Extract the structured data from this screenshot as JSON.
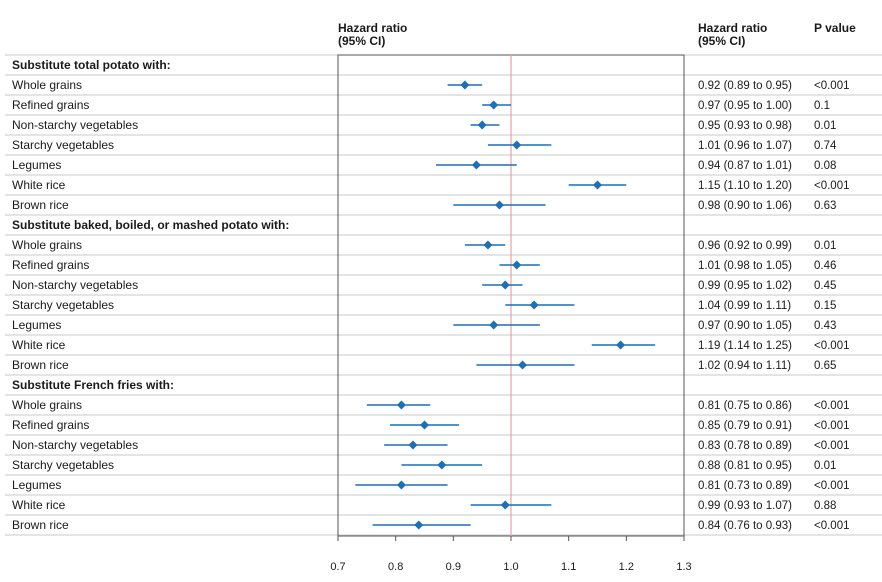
{
  "header": {
    "forest_title_line1": "Hazard ratio",
    "forest_title_line2": "(95% CI)",
    "hr_col_line1": "Hazard ratio",
    "hr_col_line2": "(95% CI)",
    "p_col": "P value"
  },
  "colors": {
    "point": "#1f6fb2",
    "reference_line": "#e8a0a8",
    "row_line": "#c8c8c8",
    "frame": "#555555"
  },
  "chart_data": {
    "type": "forest",
    "xlim": [
      0.7,
      1.3
    ],
    "x_ticks": [
      0.7,
      0.8,
      0.9,
      1.0,
      1.1,
      1.2,
      1.3
    ],
    "x_tick_labels": [
      "0.7",
      "0.8",
      "0.9",
      "1.0",
      "1.1",
      "1.2",
      "1.3"
    ],
    "reference_value": 1.0,
    "groups": [
      {
        "title": "Substitute total potato with:",
        "rows": [
          {
            "label": "Whole grains",
            "hr": 0.92,
            "lo": 0.89,
            "hi": 0.95,
            "hr_text": "0.92 (0.89 to 0.95)",
            "p": "<0.001"
          },
          {
            "label": "Refined grains",
            "hr": 0.97,
            "lo": 0.95,
            "hi": 1.0,
            "hr_text": "0.97 (0.95 to 1.00)",
            "p": "0.1"
          },
          {
            "label": "Non-starchy vegetables",
            "hr": 0.95,
            "lo": 0.93,
            "hi": 0.98,
            "hr_text": "0.95 (0.93 to 0.98)",
            "p": "0.01"
          },
          {
            "label": "Starchy vegetables",
            "hr": 1.01,
            "lo": 0.96,
            "hi": 1.07,
            "hr_text": "1.01 (0.96 to 1.07)",
            "p": "0.74"
          },
          {
            "label": "Legumes",
            "hr": 0.94,
            "lo": 0.87,
            "hi": 1.01,
            "hr_text": "0.94 (0.87 to 1.01)",
            "p": "0.08"
          },
          {
            "label": "White rice",
            "hr": 1.15,
            "lo": 1.1,
            "hi": 1.2,
            "hr_text": "1.15 (1.10 to 1.20)",
            "p": "<0.001"
          },
          {
            "label": "Brown rice",
            "hr": 0.98,
            "lo": 0.9,
            "hi": 1.06,
            "hr_text": "0.98 (0.90 to 1.06)",
            "p": "0.63"
          }
        ]
      },
      {
        "title": "Substitute baked, boiled, or mashed potato with:",
        "rows": [
          {
            "label": "Whole grains",
            "hr": 0.96,
            "lo": 0.92,
            "hi": 0.99,
            "hr_text": "0.96 (0.92 to 0.99)",
            "p": "0.01"
          },
          {
            "label": "Refined grains",
            "hr": 1.01,
            "lo": 0.98,
            "hi": 1.05,
            "hr_text": "1.01 (0.98 to 1.05)",
            "p": "0.46"
          },
          {
            "label": "Non-starchy vegetables",
            "hr": 0.99,
            "lo": 0.95,
            "hi": 1.02,
            "hr_text": "0.99 (0.95 to 1.02)",
            "p": "0.45"
          },
          {
            "label": "Starchy vegetables",
            "hr": 1.04,
            "lo": 0.99,
            "hi": 1.11,
            "hr_text": "1.04 (0.99 to 1.11)",
            "p": "0.15"
          },
          {
            "label": "Legumes",
            "hr": 0.97,
            "lo": 0.9,
            "hi": 1.05,
            "hr_text": "0.97 (0.90 to 1.05)",
            "p": "0.43"
          },
          {
            "label": "White rice",
            "hr": 1.19,
            "lo": 1.14,
            "hi": 1.25,
            "hr_text": "1.19 (1.14 to 1.25)",
            "p": "<0.001"
          },
          {
            "label": "Brown rice",
            "hr": 1.02,
            "lo": 0.94,
            "hi": 1.11,
            "hr_text": "1.02 (0.94 to 1.11)",
            "p": "0.65"
          }
        ]
      },
      {
        "title": "Substitute French fries with:",
        "rows": [
          {
            "label": "Whole grains",
            "hr": 0.81,
            "lo": 0.75,
            "hi": 0.86,
            "hr_text": "0.81 (0.75 to 0.86)",
            "p": "<0.001"
          },
          {
            "label": "Refined grains",
            "hr": 0.85,
            "lo": 0.79,
            "hi": 0.91,
            "hr_text": "0.85 (0.79 to 0.91)",
            "p": "<0.001"
          },
          {
            "label": "Non-starchy vegetables",
            "hr": 0.83,
            "lo": 0.78,
            "hi": 0.89,
            "hr_text": "0.83 (0.78 to 0.89)",
            "p": "<0.001"
          },
          {
            "label": "Starchy vegetables",
            "hr": 0.88,
            "lo": 0.81,
            "hi": 0.95,
            "hr_text": "0.88 (0.81 to 0.95)",
            "p": "0.01"
          },
          {
            "label": "Legumes",
            "hr": 0.81,
            "lo": 0.73,
            "hi": 0.89,
            "hr_text": "0.81 (0.73 to 0.89)",
            "p": "<0.001"
          },
          {
            "label": "White rice",
            "hr": 0.99,
            "lo": 0.93,
            "hi": 1.07,
            "hr_text": "0.99 (0.93 to 1.07)",
            "p": "0.88"
          },
          {
            "label": "Brown rice",
            "hr": 0.84,
            "lo": 0.76,
            "hi": 0.93,
            "hr_text": "0.84 (0.76 to 0.93)",
            "p": "<0.001"
          }
        ]
      }
    ]
  }
}
